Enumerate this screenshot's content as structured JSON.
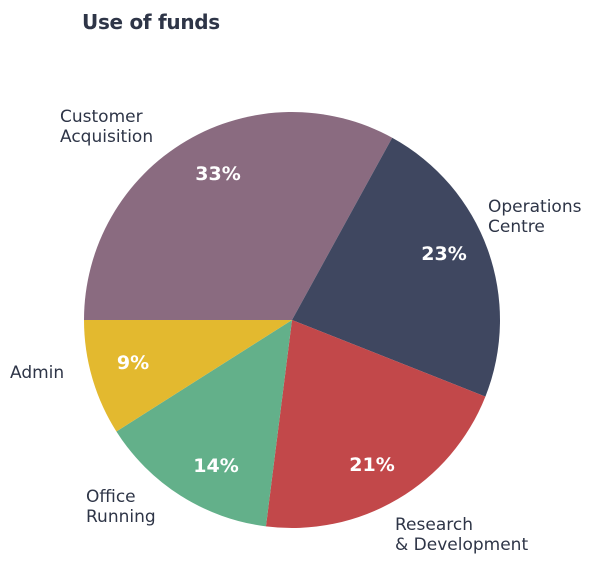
{
  "chart_data": {
    "type": "pie",
    "title": "Use of funds",
    "slices": [
      {
        "label": "Customer Acquisition",
        "label_lines": [
          "Customer",
          "Acquisition"
        ],
        "value": 33,
        "display": "33%",
        "color": "#8a6b80"
      },
      {
        "label": "Operations Centre",
        "label_lines": [
          "Operations",
          "Centre"
        ],
        "value": 23,
        "display": "23%",
        "color": "#3f4760"
      },
      {
        "label": "Research & Development",
        "label_lines": [
          "Research",
          "& Development"
        ],
        "value": 21,
        "display": "21%",
        "color": "#c2484a"
      },
      {
        "label": "Office Running",
        "label_lines": [
          "Office",
          "Running"
        ],
        "value": 14,
        "display": "14%",
        "color": "#63b08a"
      },
      {
        "label": "Admin",
        "label_lines": [
          "Admin"
        ],
        "value": 9,
        "display": "9%",
        "color": "#e3b92f"
      }
    ]
  }
}
